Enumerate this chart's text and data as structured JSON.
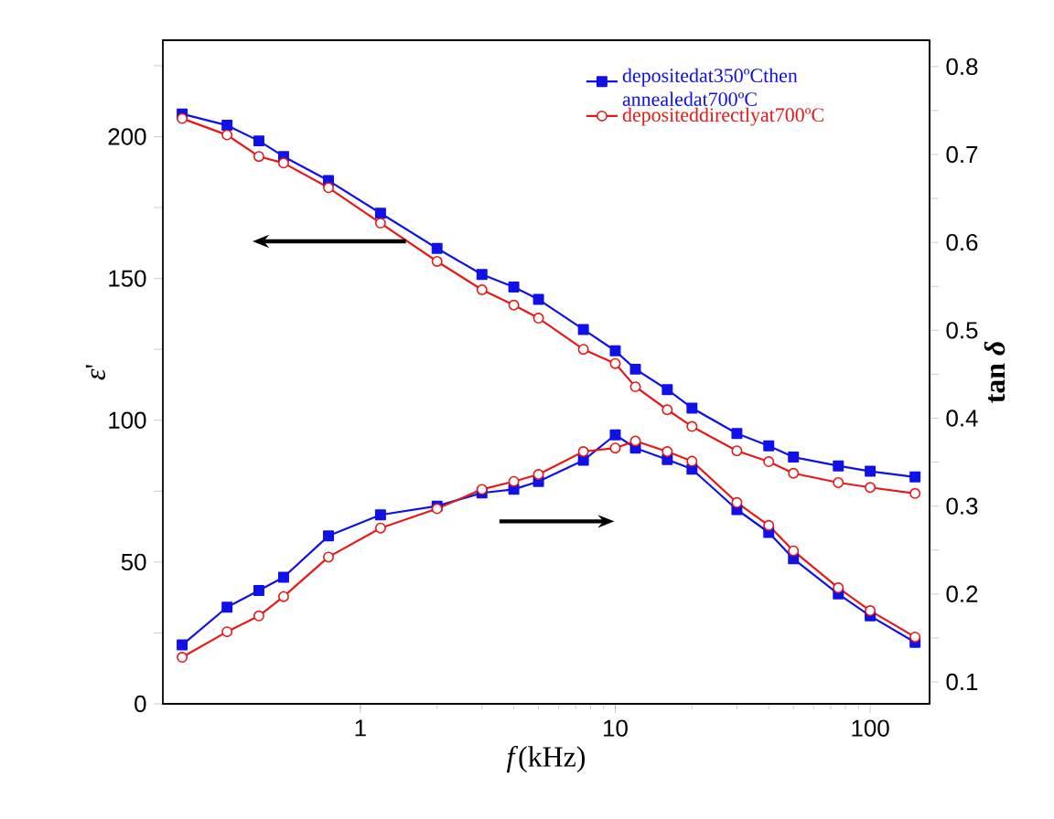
{
  "chart_data": {
    "type": "line",
    "xlabel": "*f*(kHz)",
    "ylabel": "*ε*'",
    "y2label": "tan *δ*",
    "log": "x",
    "x": [
      0.2,
      0.3,
      0.4,
      0.5,
      0.75,
      1.2,
      2,
      3,
      4,
      5,
      7.5,
      10,
      12,
      16,
      20,
      30,
      40,
      50,
      75,
      100,
      150
    ],
    "xlim": [
      0.168,
      171
    ],
    "xticks": [
      1,
      10,
      100
    ],
    "ylim": [
      0,
      234
    ],
    "yticks": [
      0,
      {
        "value": 25,
        "label": null
      },
      50,
      {
        "value": 75,
        "label": null
      },
      100,
      {
        "value": 125,
        "label": null
      },
      150,
      {
        "value": 175,
        "label": null
      },
      200,
      {
        "value": 225,
        "label": null
      }
    ],
    "y2lim": [
      0.075,
      0.83
    ],
    "y2ticks": [
      0.1,
      {
        "value": 0.15,
        "label": null
      },
      0.2,
      {
        "value": 0.25,
        "label": null
      },
      0.3,
      {
        "value": 0.35,
        "label": null
      },
      0.4,
      {
        "value": 0.45,
        "label": null
      },
      0.5,
      {
        "value": 0.55,
        "label": null
      },
      0.6,
      {
        "value": 0.65,
        "label": null
      },
      0.7,
      {
        "value": 0.75,
        "label": null
      },
      0.8
    ],
    "legend": "top right",
    "series": [
      {
        "name": "depositedat350ºCthen annealedat700ºC",
        "color": "#1010e8",
        "marker": "square",
        "values": [
          208,
          204,
          198.5,
          193,
          184.5,
          173,
          160.6,
          151.4,
          147,
          142.6,
          132,
          124.5,
          118,
          110.8,
          104.3,
          95.3,
          91,
          87,
          83.9,
          82,
          80
        ]
      },
      {
        "name": "depositeddirectlyat700ºC",
        "color": "#e81818",
        "marker": "circle",
        "values": [
          206.4,
          200.6,
          193,
          190.7,
          182,
          169.5,
          156,
          146,
          140.6,
          136,
          125,
          120,
          111.8,
          103.7,
          97.8,
          89.2,
          85.4,
          81.3,
          78,
          76.3,
          74.2
        ]
      },
      {
        "color": "#1010e8",
        "marker": "square",
        "axis": "y2",
        "values": [
          0.142,
          0.185,
          0.204,
          0.219,
          0.266,
          0.29,
          0.3,
          0.315,
          0.319,
          0.328,
          0.352,
          0.381,
          0.366,
          0.353,
          0.342,
          0.296,
          0.27,
          0.24,
          0.2,
          0.175,
          0.145
        ]
      },
      {
        "color": "#e81818",
        "marker": "circle",
        "axis": "y2",
        "values": [
          0.128,
          0.157,
          0.175,
          0.197,
          0.242,
          0.275,
          0.297,
          0.319,
          0.328,
          0.336,
          0.362,
          0.366,
          0.374,
          0.362,
          0.351,
          0.304,
          0.278,
          0.249,
          0.207,
          0.181,
          0.151
        ]
      }
    ]
  }
}
